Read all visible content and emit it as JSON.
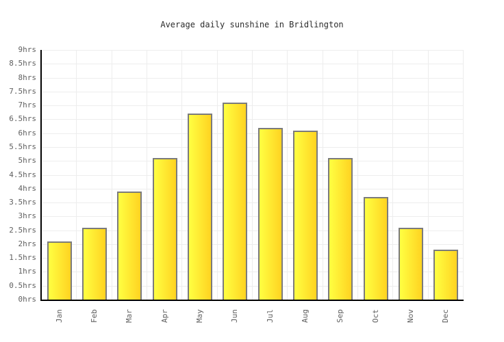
{
  "title": "Average daily sunshine in Bridlington",
  "chart_data": {
    "type": "bar",
    "title": "Average daily sunshine in Bridlington",
    "categories": [
      "Jan",
      "Feb",
      "Mar",
      "Apr",
      "May",
      "Jun",
      "Jul",
      "Aug",
      "Sep",
      "Oct",
      "Nov",
      "Dec"
    ],
    "values": [
      2.1,
      2.6,
      3.9,
      5.1,
      6.7,
      7.1,
      6.2,
      6.1,
      5.1,
      3.7,
      2.6,
      1.8
    ],
    "unit": "hrs",
    "xlabel": "",
    "ylabel": "",
    "ylim": [
      0,
      9
    ],
    "ytick_step": 0.5,
    "ytick_labels_top_down": [
      "9hrs",
      "8.5hrs",
      "8hrs",
      "7.5hrs",
      "7hrs",
      "6.5hrs",
      "6hrs",
      "5.5hrs",
      "5hrs",
      "4.5hrs",
      "4hrs",
      "3.5hrs",
      "3hrs",
      "2.5hrs",
      "2hrs",
      "1.5hrs",
      "1hrs",
      "0.5hrs",
      "0hrs"
    ],
    "grid": true,
    "legend": null,
    "colors": {
      "bar_gradient_left": "#ffff42",
      "bar_gradient_right": "#ffd321",
      "bar_border": "#7b7b7b",
      "axis_line": "#000000",
      "gridline": "#ededed",
      "tick_text": "#5f5f5f",
      "title_text": "#2b2b2b",
      "background": "#ffffff"
    }
  }
}
